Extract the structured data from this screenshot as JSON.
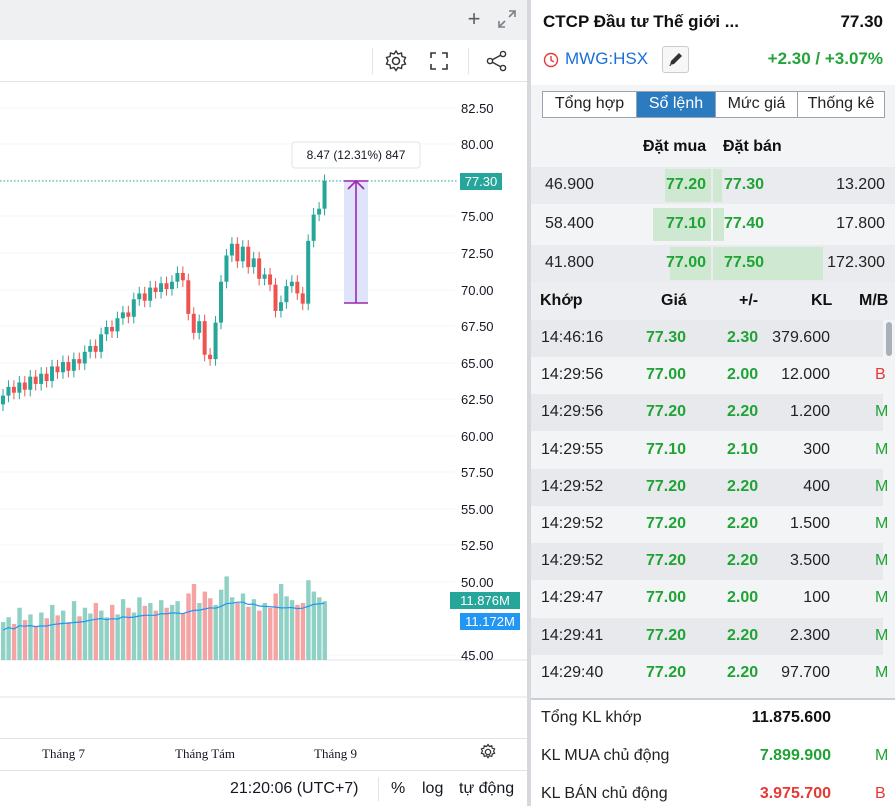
{
  "chart": {
    "price_labels": [
      "82.50",
      "80.00",
      "77.50",
      "75.00",
      "72.50",
      "70.00",
      "67.50",
      "65.00",
      "62.50",
      "60.00",
      "57.50",
      "55.00",
      "52.50",
      "50.00",
      "45.00"
    ],
    "last_price_tag": "77.30",
    "volume_tag_1": "11.876M",
    "volume_tag_2": "11.172M",
    "measure_label": "8.47 (12.31%) 847",
    "time_labels": [
      "Tháng 7",
      "Tháng Tám",
      "Tháng 9"
    ],
    "clock": "21:20:06 (UTC+7)",
    "scale_buttons": [
      "%",
      "log",
      "tự động"
    ],
    "colors": {
      "up": "#26a69a",
      "down": "#ef5350",
      "volume_up": "#8fd1c4",
      "volume_down": "#f5a3a3",
      "ma_line": "#2196f3",
      "measure": "#9c27b0"
    }
  },
  "header": {
    "company_name": "CTCP Đầu tư Thế giới ...",
    "price": "77.30",
    "ticker": "MWG:HSX",
    "change": "+2.30 / +3.07%"
  },
  "tabs": [
    "Tổng hợp",
    "Sổ lệnh",
    "Mức giá",
    "Thống kê"
  ],
  "orderbook": {
    "headers": {
      "bid": "Đặt mua",
      "ask": "Đặt bán"
    },
    "rows": [
      {
        "bid_vol": "46.900",
        "bid": "77.20",
        "ask": "77.30",
        "ask_vol": "13.200",
        "bid_depth": 0.27,
        "ask_depth": 0.08
      },
      {
        "bid_vol": "58.400",
        "bid": "77.10",
        "ask": "77.40",
        "ask_vol": "17.800",
        "bid_depth": 0.34,
        "ask_depth": 0.1
      },
      {
        "bid_vol": "41.800",
        "bid": "77.00",
        "ask": "77.50",
        "ask_vol": "172.300",
        "bid_depth": 0.24,
        "ask_depth": 1.0
      }
    ]
  },
  "trades": {
    "headers": {
      "time": "Khớp",
      "price": "Giá",
      "change": "+/-",
      "vol": "KL",
      "side": "M/B"
    },
    "rows": [
      {
        "time": "14:46:16",
        "price": "77.30",
        "change": "2.30",
        "vol": "379.600",
        "side": ""
      },
      {
        "time": "14:29:56",
        "price": "77.00",
        "change": "2.00",
        "vol": "12.000",
        "side": "B"
      },
      {
        "time": "14:29:56",
        "price": "77.20",
        "change": "2.20",
        "vol": "1.200",
        "side": "M"
      },
      {
        "time": "14:29:55",
        "price": "77.10",
        "change": "2.10",
        "vol": "300",
        "side": "M"
      },
      {
        "time": "14:29:52",
        "price": "77.20",
        "change": "2.20",
        "vol": "400",
        "side": "M"
      },
      {
        "time": "14:29:52",
        "price": "77.20",
        "change": "2.20",
        "vol": "1.500",
        "side": "M"
      },
      {
        "time": "14:29:52",
        "price": "77.20",
        "change": "2.20",
        "vol": "3.500",
        "side": "M"
      },
      {
        "time": "14:29:47",
        "price": "77.00",
        "change": "2.00",
        "vol": "100",
        "side": "M"
      },
      {
        "time": "14:29:41",
        "price": "77.20",
        "change": "2.20",
        "vol": "2.300",
        "side": "M"
      },
      {
        "time": "14:29:40",
        "price": "77.20",
        "change": "2.20",
        "vol": "97.700",
        "side": "M"
      }
    ]
  },
  "summary": [
    {
      "label": "Tổng KL khớp",
      "value": "11.875.600",
      "side": ""
    },
    {
      "label": "KL MUA chủ động",
      "value": "7.899.900",
      "side": "M"
    },
    {
      "label": "KL BÁN chủ động",
      "value": "3.975.700",
      "side": "B"
    }
  ],
  "colors": {
    "green": "#1fa334",
    "red": "#e53935",
    "blue": "#1a6fd8",
    "tab_active": "#2a7bbf"
  }
}
